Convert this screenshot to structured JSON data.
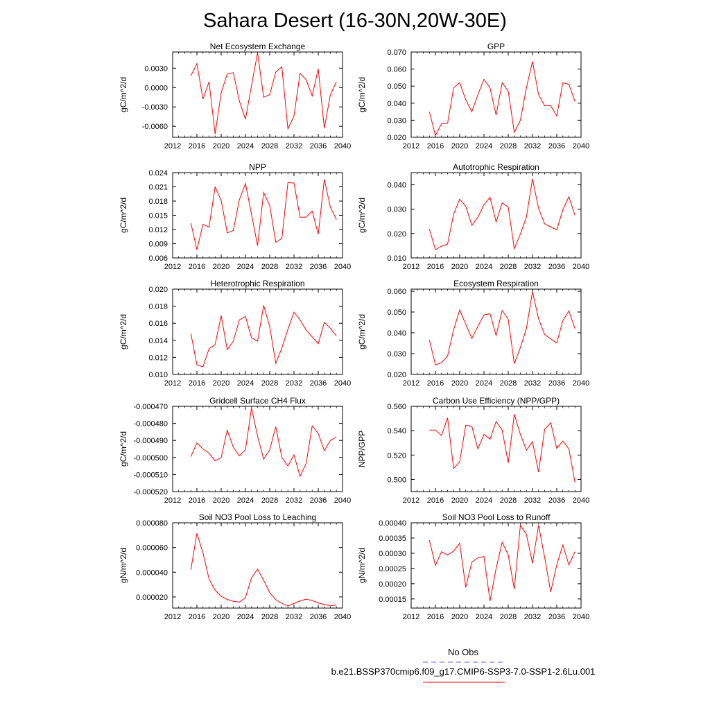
{
  "title": "Sahara Desert (16-30N,20W-30E)",
  "legend": {
    "obs_label": "No Obs",
    "obs_color": "#6a6ad8",
    "model_label": "b.e21.BSSP370cmip6.f09_g17.CMIP6-SSP3-7.0-SSP1-2.6Lu.001",
    "model_color": "#ff0000"
  },
  "chart_data": [
    {
      "type": "line",
      "title": "Net Ecosystem Exchange",
      "ylabel": "gC/m^2/d",
      "xlim": [
        2012,
        2040
      ],
      "xticks": [
        2012,
        2016,
        2020,
        2024,
        2028,
        2032,
        2036,
        2040
      ],
      "xtick_labels": [
        "2012",
        "2016",
        "2020",
        "2024",
        "2028",
        "2032",
        "2036",
        "2040"
      ],
      "ylim": [
        -0.0077,
        0.0055
      ],
      "yticks": [
        -0.006,
        -0.003,
        0.0,
        0.003
      ],
      "ytick_labels": [
        "-0.0060",
        "-0.0030",
        "0.0000",
        "0.0030"
      ],
      "x": [
        2015,
        2016,
        2017,
        2018,
        2019,
        2020,
        2021,
        2022,
        2023,
        2024,
        2025,
        2026,
        2027,
        2028,
        2029,
        2030,
        2031,
        2032,
        2033,
        2034,
        2035,
        2036,
        2037,
        2038,
        2039
      ],
      "series": [
        {
          "color": "#ff0000",
          "values": [
            0.0018,
            0.0037,
            -0.0018,
            0.0009,
            -0.0072,
            -0.0008,
            0.0021,
            0.0023,
            -0.0021,
            -0.0049,
            0.0003,
            0.0054,
            -0.0015,
            -0.0011,
            0.0024,
            0.0032,
            -0.0064,
            -0.0044,
            0.0022,
            0.0012,
            -0.0013,
            0.0029,
            -0.0063,
            -0.0011,
            0.0009
          ]
        }
      ]
    },
    {
      "type": "line",
      "title": "GPP",
      "ylabel": "gC/m^2/d",
      "xlim": [
        2012,
        2040
      ],
      "xticks": [
        2012,
        2016,
        2020,
        2024,
        2028,
        2032,
        2036,
        2040
      ],
      "xtick_labels": [
        "2012",
        "2016",
        "2020",
        "2024",
        "2028",
        "2032",
        "2036",
        "2040"
      ],
      "ylim": [
        0.02,
        0.07
      ],
      "yticks": [
        0.02,
        0.03,
        0.04,
        0.05,
        0.06,
        0.07
      ],
      "ytick_labels": [
        "0.020",
        "0.030",
        "0.040",
        "0.050",
        "0.060",
        "0.070"
      ],
      "x": [
        2015,
        2016,
        2017,
        2018,
        2019,
        2020,
        2021,
        2022,
        2023,
        2024,
        2025,
        2026,
        2027,
        2028,
        2029,
        2030,
        2031,
        2032,
        2033,
        2034,
        2035,
        2036,
        2037,
        2038,
        2039
      ],
      "series": [
        {
          "color": "#ff0000",
          "values": [
            0.035,
            0.021,
            0.028,
            0.0282,
            0.049,
            0.052,
            0.042,
            0.035,
            0.045,
            0.054,
            0.049,
            0.033,
            0.052,
            0.047,
            0.023,
            0.03,
            0.049,
            0.0645,
            0.045,
            0.0385,
            0.0385,
            0.0325,
            0.052,
            0.051,
            0.041
          ]
        }
      ]
    },
    {
      "type": "line",
      "title": "NPP",
      "ylabel": "gC/m^2/d",
      "xlim": [
        2012,
        2040
      ],
      "xticks": [
        2012,
        2016,
        2020,
        2024,
        2028,
        2032,
        2036,
        2040
      ],
      "xtick_labels": [
        "2012",
        "2016",
        "2020",
        "2024",
        "2028",
        "2032",
        "2036",
        "2040"
      ],
      "ylim": [
        0.006,
        0.024
      ],
      "yticks": [
        0.006,
        0.009,
        0.012,
        0.015,
        0.018,
        0.021,
        0.024
      ],
      "ytick_labels": [
        "0.006",
        "0.009",
        "0.012",
        "0.015",
        "0.018",
        "0.021",
        "0.024"
      ],
      "x": [
        2015,
        2016,
        2017,
        2018,
        2019,
        2020,
        2021,
        2022,
        2023,
        2024,
        2025,
        2026,
        2027,
        2028,
        2029,
        2030,
        2031,
        2032,
        2033,
        2034,
        2035,
        2036,
        2037,
        2038,
        2039
      ],
      "series": [
        {
          "color": "#ff0000",
          "values": [
            0.0134,
            0.0077,
            0.0131,
            0.0125,
            0.021,
            0.0181,
            0.0113,
            0.0118,
            0.0183,
            0.0217,
            0.0152,
            0.0086,
            0.0198,
            0.0171,
            0.0093,
            0.0101,
            0.0219,
            0.0218,
            0.0146,
            0.0146,
            0.0159,
            0.011,
            0.0226,
            0.0167,
            0.0141
          ]
        }
      ]
    },
    {
      "type": "line",
      "title": "Autotrophic Respiration",
      "ylabel": "gC/m^2/d",
      "xlim": [
        2012,
        2040
      ],
      "xticks": [
        2012,
        2016,
        2020,
        2024,
        2028,
        2032,
        2036,
        2040
      ],
      "xtick_labels": [
        "2012",
        "2016",
        "2020",
        "2024",
        "2028",
        "2032",
        "2036",
        "2040"
      ],
      "ylim": [
        0.01,
        0.045
      ],
      "yticks": [
        0.01,
        0.02,
        0.03,
        0.04
      ],
      "ytick_labels": [
        "0.010",
        "0.020",
        "0.030",
        "0.040"
      ],
      "x": [
        2015,
        2016,
        2017,
        2018,
        2019,
        2020,
        2021,
        2022,
        2023,
        2024,
        2025,
        2026,
        2027,
        2028,
        2029,
        2030,
        2031,
        2032,
        2033,
        2034,
        2035,
        2036,
        2037,
        2038,
        2039
      ],
      "series": [
        {
          "color": "#ff0000",
          "values": [
            0.0218,
            0.0134,
            0.0148,
            0.0157,
            0.028,
            0.0341,
            0.0312,
            0.0234,
            0.0267,
            0.0318,
            0.0349,
            0.0248,
            0.0326,
            0.0309,
            0.0138,
            0.0198,
            0.0268,
            0.0425,
            0.0303,
            0.024,
            0.0227,
            0.0215,
            0.0298,
            0.0351,
            0.0275
          ]
        }
      ]
    },
    {
      "type": "line",
      "title": "Heterotrophic Respiration",
      "ylabel": "gC/m^2/d",
      "xlim": [
        2012,
        2040
      ],
      "xticks": [
        2012,
        2016,
        2020,
        2024,
        2028,
        2032,
        2036,
        2040
      ],
      "xtick_labels": [
        "2012",
        "2016",
        "2020",
        "2024",
        "2028",
        "2032",
        "2036",
        "2040"
      ],
      "ylim": [
        0.01,
        0.02
      ],
      "yticks": [
        0.01,
        0.012,
        0.014,
        0.016,
        0.018,
        0.02
      ],
      "ytick_labels": [
        "0.010",
        "0.012",
        "0.014",
        "0.016",
        "0.018",
        "0.020"
      ],
      "x": [
        2015,
        2016,
        2017,
        2018,
        2019,
        2020,
        2021,
        2022,
        2023,
        2024,
        2025,
        2026,
        2027,
        2028,
        2029,
        2030,
        2031,
        2032,
        2033,
        2034,
        2035,
        2036,
        2037,
        2038,
        2039
      ],
      "series": [
        {
          "color": "#ff0000",
          "values": [
            0.0148,
            0.0111,
            0.0109,
            0.013,
            0.0135,
            0.0169,
            0.0129,
            0.0139,
            0.0164,
            0.0168,
            0.0143,
            0.0139,
            0.0181,
            0.0156,
            0.0113,
            0.0131,
            0.0153,
            0.0173,
            0.0164,
            0.0152,
            0.0144,
            0.0136,
            0.0161,
            0.0154,
            0.0145
          ]
        }
      ]
    },
    {
      "type": "line",
      "title": "Ecosystem Respiration",
      "ylabel": "gC/m^2/d",
      "xlim": [
        2012,
        2040
      ],
      "xticks": [
        2012,
        2016,
        2020,
        2024,
        2028,
        2032,
        2036,
        2040
      ],
      "xtick_labels": [
        "2012",
        "2016",
        "2020",
        "2024",
        "2028",
        "2032",
        "2036",
        "2040"
      ],
      "ylim": [
        0.02,
        0.061
      ],
      "yticks": [
        0.02,
        0.03,
        0.04,
        0.05,
        0.06
      ],
      "ytick_labels": [
        "0.020",
        "0.030",
        "0.040",
        "0.050",
        "0.060"
      ],
      "x": [
        2015,
        2016,
        2017,
        2018,
        2019,
        2020,
        2021,
        2022,
        2023,
        2024,
        2025,
        2026,
        2027,
        2028,
        2029,
        2030,
        2031,
        2032,
        2033,
        2034,
        2035,
        2036,
        2037,
        2038,
        2039
      ],
      "series": [
        {
          "color": "#ff0000",
          "values": [
            0.0366,
            0.0245,
            0.0257,
            0.0288,
            0.0415,
            0.051,
            0.0441,
            0.0373,
            0.0431,
            0.0486,
            0.0492,
            0.0387,
            0.0507,
            0.0465,
            0.0252,
            0.0329,
            0.0421,
            0.0598,
            0.0467,
            0.0392,
            0.0371,
            0.0351,
            0.0459,
            0.0505,
            0.042
          ]
        }
      ]
    },
    {
      "type": "line",
      "title": "Gridcell Surface CH4 Flux",
      "ylabel": "gC/m^2/d",
      "xlim": [
        2012,
        2040
      ],
      "xticks": [
        2012,
        2016,
        2020,
        2024,
        2028,
        2032,
        2036,
        2040
      ],
      "xtick_labels": [
        "2012",
        "2016",
        "2020",
        "2024",
        "2028",
        "2032",
        "2036",
        "2040"
      ],
      "ylim": [
        -0.00052,
        -0.00047
      ],
      "yticks": [
        -0.00052,
        -0.00051,
        -0.0005,
        -0.00049,
        -0.00048,
        -0.00047
      ],
      "ytick_labels": [
        "-0.000520",
        "-0.000510",
        "-0.000500",
        "-0.000490",
        "-0.000480",
        "-0.000470"
      ],
      "x": [
        2015,
        2016,
        2017,
        2018,
        2019,
        2020,
        2021,
        2022,
        2023,
        2024,
        2025,
        2026,
        2027,
        2028,
        2029,
        2030,
        2031,
        2032,
        2033,
        2034,
        2035,
        2036,
        2037,
        2038,
        2039
      ],
      "series": [
        {
          "color": "#ff0000",
          "values": [
            -0.0004995,
            -0.0004915,
            -0.000495,
            -0.0004975,
            -0.000502,
            -0.0005,
            -0.000484,
            -0.000494,
            -0.000499,
            -0.0004955,
            -0.000471,
            -0.0004875,
            -0.000501,
            -0.0004955,
            -0.000482,
            -0.0005,
            -0.000505,
            -0.0004985,
            -0.000511,
            -0.0005035,
            -0.0004815,
            -0.000486,
            -0.000496,
            -0.00049,
            -0.000488
          ]
        }
      ]
    },
    {
      "type": "line",
      "title": "Carbon Use Efficiency (NPP/GPP)",
      "ylabel": "NPP/GPP",
      "xlim": [
        2012,
        2040
      ],
      "xticks": [
        2012,
        2016,
        2020,
        2024,
        2028,
        2032,
        2036,
        2040
      ],
      "xtick_labels": [
        "2012",
        "2016",
        "2020",
        "2024",
        "2028",
        "2032",
        "2036",
        "2040"
      ],
      "ylim": [
        0.49,
        0.56
      ],
      "yticks": [
        0.5,
        0.52,
        0.54,
        0.56
      ],
      "ytick_labels": [
        "0.500",
        "0.520",
        "0.540",
        "0.560"
      ],
      "x": [
        2015,
        2016,
        2017,
        2018,
        2019,
        2020,
        2021,
        2022,
        2023,
        2024,
        2025,
        2026,
        2027,
        2028,
        2029,
        2030,
        2031,
        2032,
        2033,
        2034,
        2035,
        2036,
        2037,
        2038,
        2039
      ],
      "series": [
        {
          "color": "#ff0000",
          "values": [
            0.5405,
            0.5405,
            0.536,
            0.5505,
            0.509,
            0.5145,
            0.5445,
            0.5435,
            0.525,
            0.537,
            0.533,
            0.5475,
            0.5405,
            0.5135,
            0.5535,
            0.537,
            0.524,
            0.531,
            0.506,
            0.541,
            0.5465,
            0.5255,
            0.5315,
            0.525,
            0.4975
          ]
        }
      ]
    },
    {
      "type": "line",
      "title": "Soil NO3 Pool Loss to Leaching",
      "ylabel": "gN/m^2/d",
      "xlim": [
        2012,
        2040
      ],
      "xticks": [
        2012,
        2016,
        2020,
        2024,
        2028,
        2032,
        2036,
        2040
      ],
      "xtick_labels": [
        "2012",
        "2016",
        "2020",
        "2024",
        "2028",
        "2032",
        "2036",
        "2040"
      ],
      "ylim": [
        1.1e-05,
        8e-05
      ],
      "yticks": [
        2e-05,
        4e-05,
        6e-05,
        8e-05
      ],
      "ytick_labels": [
        "0.000020",
        "0.000040",
        "0.000060",
        "0.000080"
      ],
      "x": [
        2015,
        2016,
        2017,
        2018,
        2019,
        2020,
        2021,
        2022,
        2023,
        2024,
        2025,
        2026,
        2027,
        2028,
        2029,
        2030,
        2031,
        2032,
        2033,
        2034,
        2035,
        2036,
        2037,
        2038,
        2039
      ],
      "series": [
        {
          "color": "#ff0000",
          "values": [
            4.2e-05,
            7.15e-05,
            5.55e-05,
            3.45e-05,
            2.55e-05,
            2.05e-05,
            1.8e-05,
            1.65e-05,
            1.58e-05,
            1.95e-05,
            3.55e-05,
            4.25e-05,
            3.35e-05,
            2.35e-05,
            1.78e-05,
            1.48e-05,
            1.28e-05,
            1.48e-05,
            1.68e-05,
            1.82e-05,
            1.72e-05,
            1.52e-05,
            1.38e-05,
            1.28e-05,
            1.35e-05
          ]
        }
      ]
    },
    {
      "type": "line",
      "title": "Soil NO3 Pool Loss to Runoff",
      "ylabel": "gN/m^2/d",
      "xlim": [
        2012,
        2040
      ],
      "xticks": [
        2012,
        2016,
        2020,
        2024,
        2028,
        2032,
        2036,
        2040
      ],
      "xtick_labels": [
        "2012",
        "2016",
        "2020",
        "2024",
        "2028",
        "2032",
        "2036",
        "2040"
      ],
      "ylim": [
        0.00012,
        0.0004
      ],
      "yticks": [
        0.00015,
        0.0002,
        0.00025,
        0.0003,
        0.00035,
        0.0004
      ],
      "ytick_labels": [
        "0.00015",
        "0.00020",
        "0.00025",
        "0.00030",
        "0.00035",
        "0.00040"
      ],
      "x": [
        2015,
        2016,
        2017,
        2018,
        2019,
        2020,
        2021,
        2022,
        2023,
        2024,
        2025,
        2026,
        2027,
        2028,
        2029,
        2030,
        2031,
        2032,
        2033,
        2034,
        2035,
        2036,
        2037,
        2038,
        2039
      ],
      "series": [
        {
          "color": "#ff0000",
          "values": [
            0.000343,
            0.00026,
            0.000305,
            0.000294,
            0.000307,
            0.000333,
            0.000188,
            0.000271,
            0.000285,
            0.000289,
            0.000143,
            0.00025,
            0.000336,
            0.000295,
            0.000182,
            0.000392,
            0.000362,
            0.000267,
            0.000392,
            0.000287,
            0.000173,
            0.000262,
            0.000327,
            0.000262,
            0.000305
          ]
        }
      ]
    }
  ]
}
